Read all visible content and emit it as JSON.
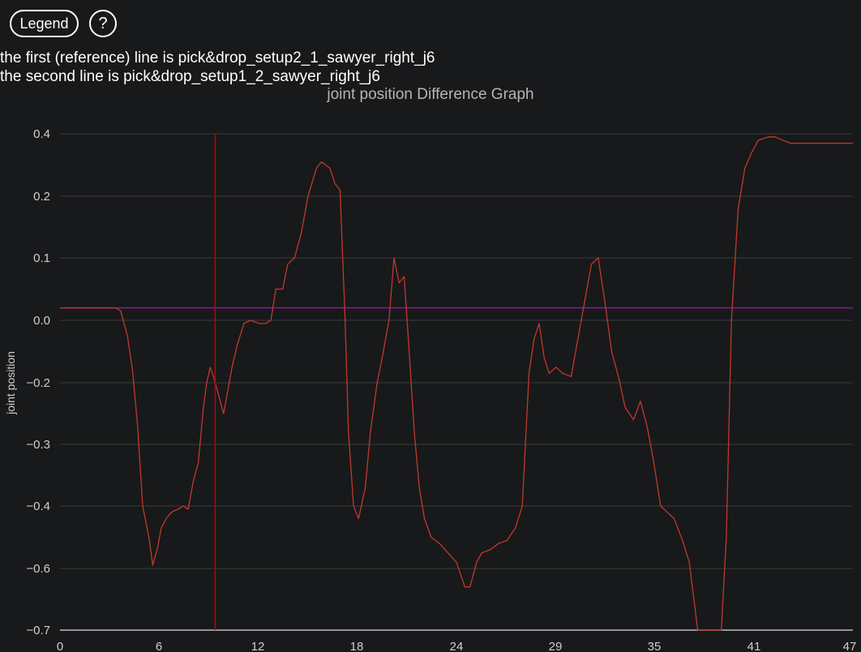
{
  "controls": {
    "legend_label": "Legend",
    "help_label": "?"
  },
  "info": {
    "line1": "the first (reference) line is pick&drop_setup2_1_sawyer_right_j6",
    "line2": "the second line is pick&drop_setup1_2_sawyer_right_j6"
  },
  "chart_data": {
    "type": "line",
    "title": "joint position Difference Graph",
    "xlabel": "",
    "ylabel": "joint position",
    "x_ticks": [
      "0",
      "6",
      "12",
      "18",
      "24",
      "29",
      "35",
      "41",
      "47"
    ],
    "y_ticks": [
      "0.4",
      "0.2",
      "0.1",
      "0.0",
      "−0.2",
      "−0.3",
      "−0.4",
      "−0.6",
      "−0.7"
    ],
    "xlim": [
      0,
      47
    ],
    "grid": true,
    "colors": {
      "difference_line": "#c0392b",
      "reference_line": "#8b1a8b",
      "cursor_line": "#c00000",
      "grid": "#3a3a3a",
      "axis": "#bdbdbd"
    },
    "reference_level": 0.02,
    "cursor_x": 9.2,
    "series": [
      {
        "values": [
          [
            0.0,
            0.02
          ],
          [
            3.3,
            0.02
          ],
          [
            3.6,
            0.015
          ],
          [
            4.0,
            -0.05
          ],
          [
            4.3,
            -0.16
          ],
          [
            4.6,
            -0.27
          ],
          [
            4.9,
            -0.4
          ],
          [
            5.3,
            -0.51
          ],
          [
            5.5,
            -0.59
          ],
          [
            5.8,
            -0.53
          ],
          [
            6.0,
            -0.47
          ],
          [
            6.3,
            -0.44
          ],
          [
            6.6,
            -0.42
          ],
          [
            7.0,
            -0.41
          ],
          [
            7.3,
            -0.4
          ],
          [
            7.6,
            -0.41
          ],
          [
            7.9,
            -0.36
          ],
          [
            8.2,
            -0.33
          ],
          [
            8.5,
            -0.24
          ],
          [
            8.7,
            -0.2
          ],
          [
            8.9,
            -0.15
          ],
          [
            9.1,
            -0.18
          ],
          [
            9.4,
            -0.22
          ],
          [
            9.7,
            -0.25
          ],
          [
            9.9,
            -0.22
          ],
          [
            10.2,
            -0.15
          ],
          [
            10.5,
            -0.08
          ],
          [
            10.9,
            -0.01
          ],
          [
            11.3,
            0.0
          ],
          [
            11.8,
            -0.01
          ],
          [
            12.2,
            -0.01
          ],
          [
            12.5,
            0.0
          ],
          [
            12.8,
            0.05
          ],
          [
            13.2,
            0.05
          ],
          [
            13.5,
            0.09
          ],
          [
            13.9,
            0.1
          ],
          [
            14.3,
            0.14
          ],
          [
            14.7,
            0.2
          ],
          [
            15.2,
            0.29
          ],
          [
            15.5,
            0.31
          ],
          [
            16.0,
            0.29
          ],
          [
            16.3,
            0.24
          ],
          [
            16.6,
            0.22
          ],
          [
            16.9,
            0.0
          ],
          [
            17.1,
            -0.28
          ],
          [
            17.4,
            -0.4
          ],
          [
            17.7,
            -0.44
          ],
          [
            18.1,
            -0.37
          ],
          [
            18.4,
            -0.28
          ],
          [
            18.8,
            -0.2
          ],
          [
            19.1,
            -0.12
          ],
          [
            19.5,
            0.0
          ],
          [
            19.8,
            0.1
          ],
          [
            20.1,
            0.06
          ],
          [
            20.4,
            0.07
          ],
          [
            20.7,
            -0.1
          ],
          [
            21.0,
            -0.28
          ],
          [
            21.3,
            -0.37
          ],
          [
            21.6,
            -0.44
          ],
          [
            22.0,
            -0.5
          ],
          [
            22.5,
            -0.52
          ],
          [
            23.0,
            -0.55
          ],
          [
            23.5,
            -0.58
          ],
          [
            24.0,
            -0.63
          ],
          [
            24.3,
            -0.63
          ],
          [
            24.7,
            -0.58
          ],
          [
            25.0,
            -0.55
          ],
          [
            25.5,
            -0.54
          ],
          [
            26.0,
            -0.52
          ],
          [
            26.5,
            -0.51
          ],
          [
            27.0,
            -0.47
          ],
          [
            27.4,
            -0.4
          ],
          [
            27.8,
            -0.17
          ],
          [
            28.1,
            -0.06
          ],
          [
            28.4,
            -0.01
          ],
          [
            28.7,
            -0.12
          ],
          [
            29.0,
            -0.17
          ],
          [
            29.4,
            -0.15
          ],
          [
            29.8,
            -0.17
          ],
          [
            30.3,
            -0.18
          ],
          [
            30.7,
            -0.06
          ],
          [
            31.1,
            0.03
          ],
          [
            31.5,
            0.09
          ],
          [
            31.9,
            0.1
          ],
          [
            32.3,
            0.03
          ],
          [
            32.7,
            -0.1
          ],
          [
            33.1,
            -0.18
          ],
          [
            33.5,
            -0.24
          ],
          [
            34.0,
            -0.26
          ],
          [
            34.4,
            -0.23
          ],
          [
            34.8,
            -0.27
          ],
          [
            35.2,
            -0.33
          ],
          [
            35.6,
            -0.4
          ],
          [
            36.0,
            -0.42
          ],
          [
            36.4,
            -0.44
          ],
          [
            36.9,
            -0.51
          ],
          [
            37.3,
            -0.58
          ],
          [
            37.8,
            -0.7
          ],
          [
            38.3,
            -0.85
          ],
          [
            38.7,
            -0.98
          ],
          [
            39.0,
            -1.01
          ],
          [
            39.2,
            -0.93
          ],
          [
            39.5,
            -0.5
          ],
          [
            39.8,
            0.0
          ],
          [
            40.2,
            0.18
          ],
          [
            40.6,
            0.29
          ],
          [
            41.0,
            0.34
          ],
          [
            41.4,
            0.38
          ],
          [
            42.0,
            0.39
          ],
          [
            42.4,
            0.39
          ],
          [
            42.8,
            0.38
          ],
          [
            43.3,
            0.37
          ],
          [
            47.0,
            0.37
          ]
        ]
      }
    ]
  }
}
